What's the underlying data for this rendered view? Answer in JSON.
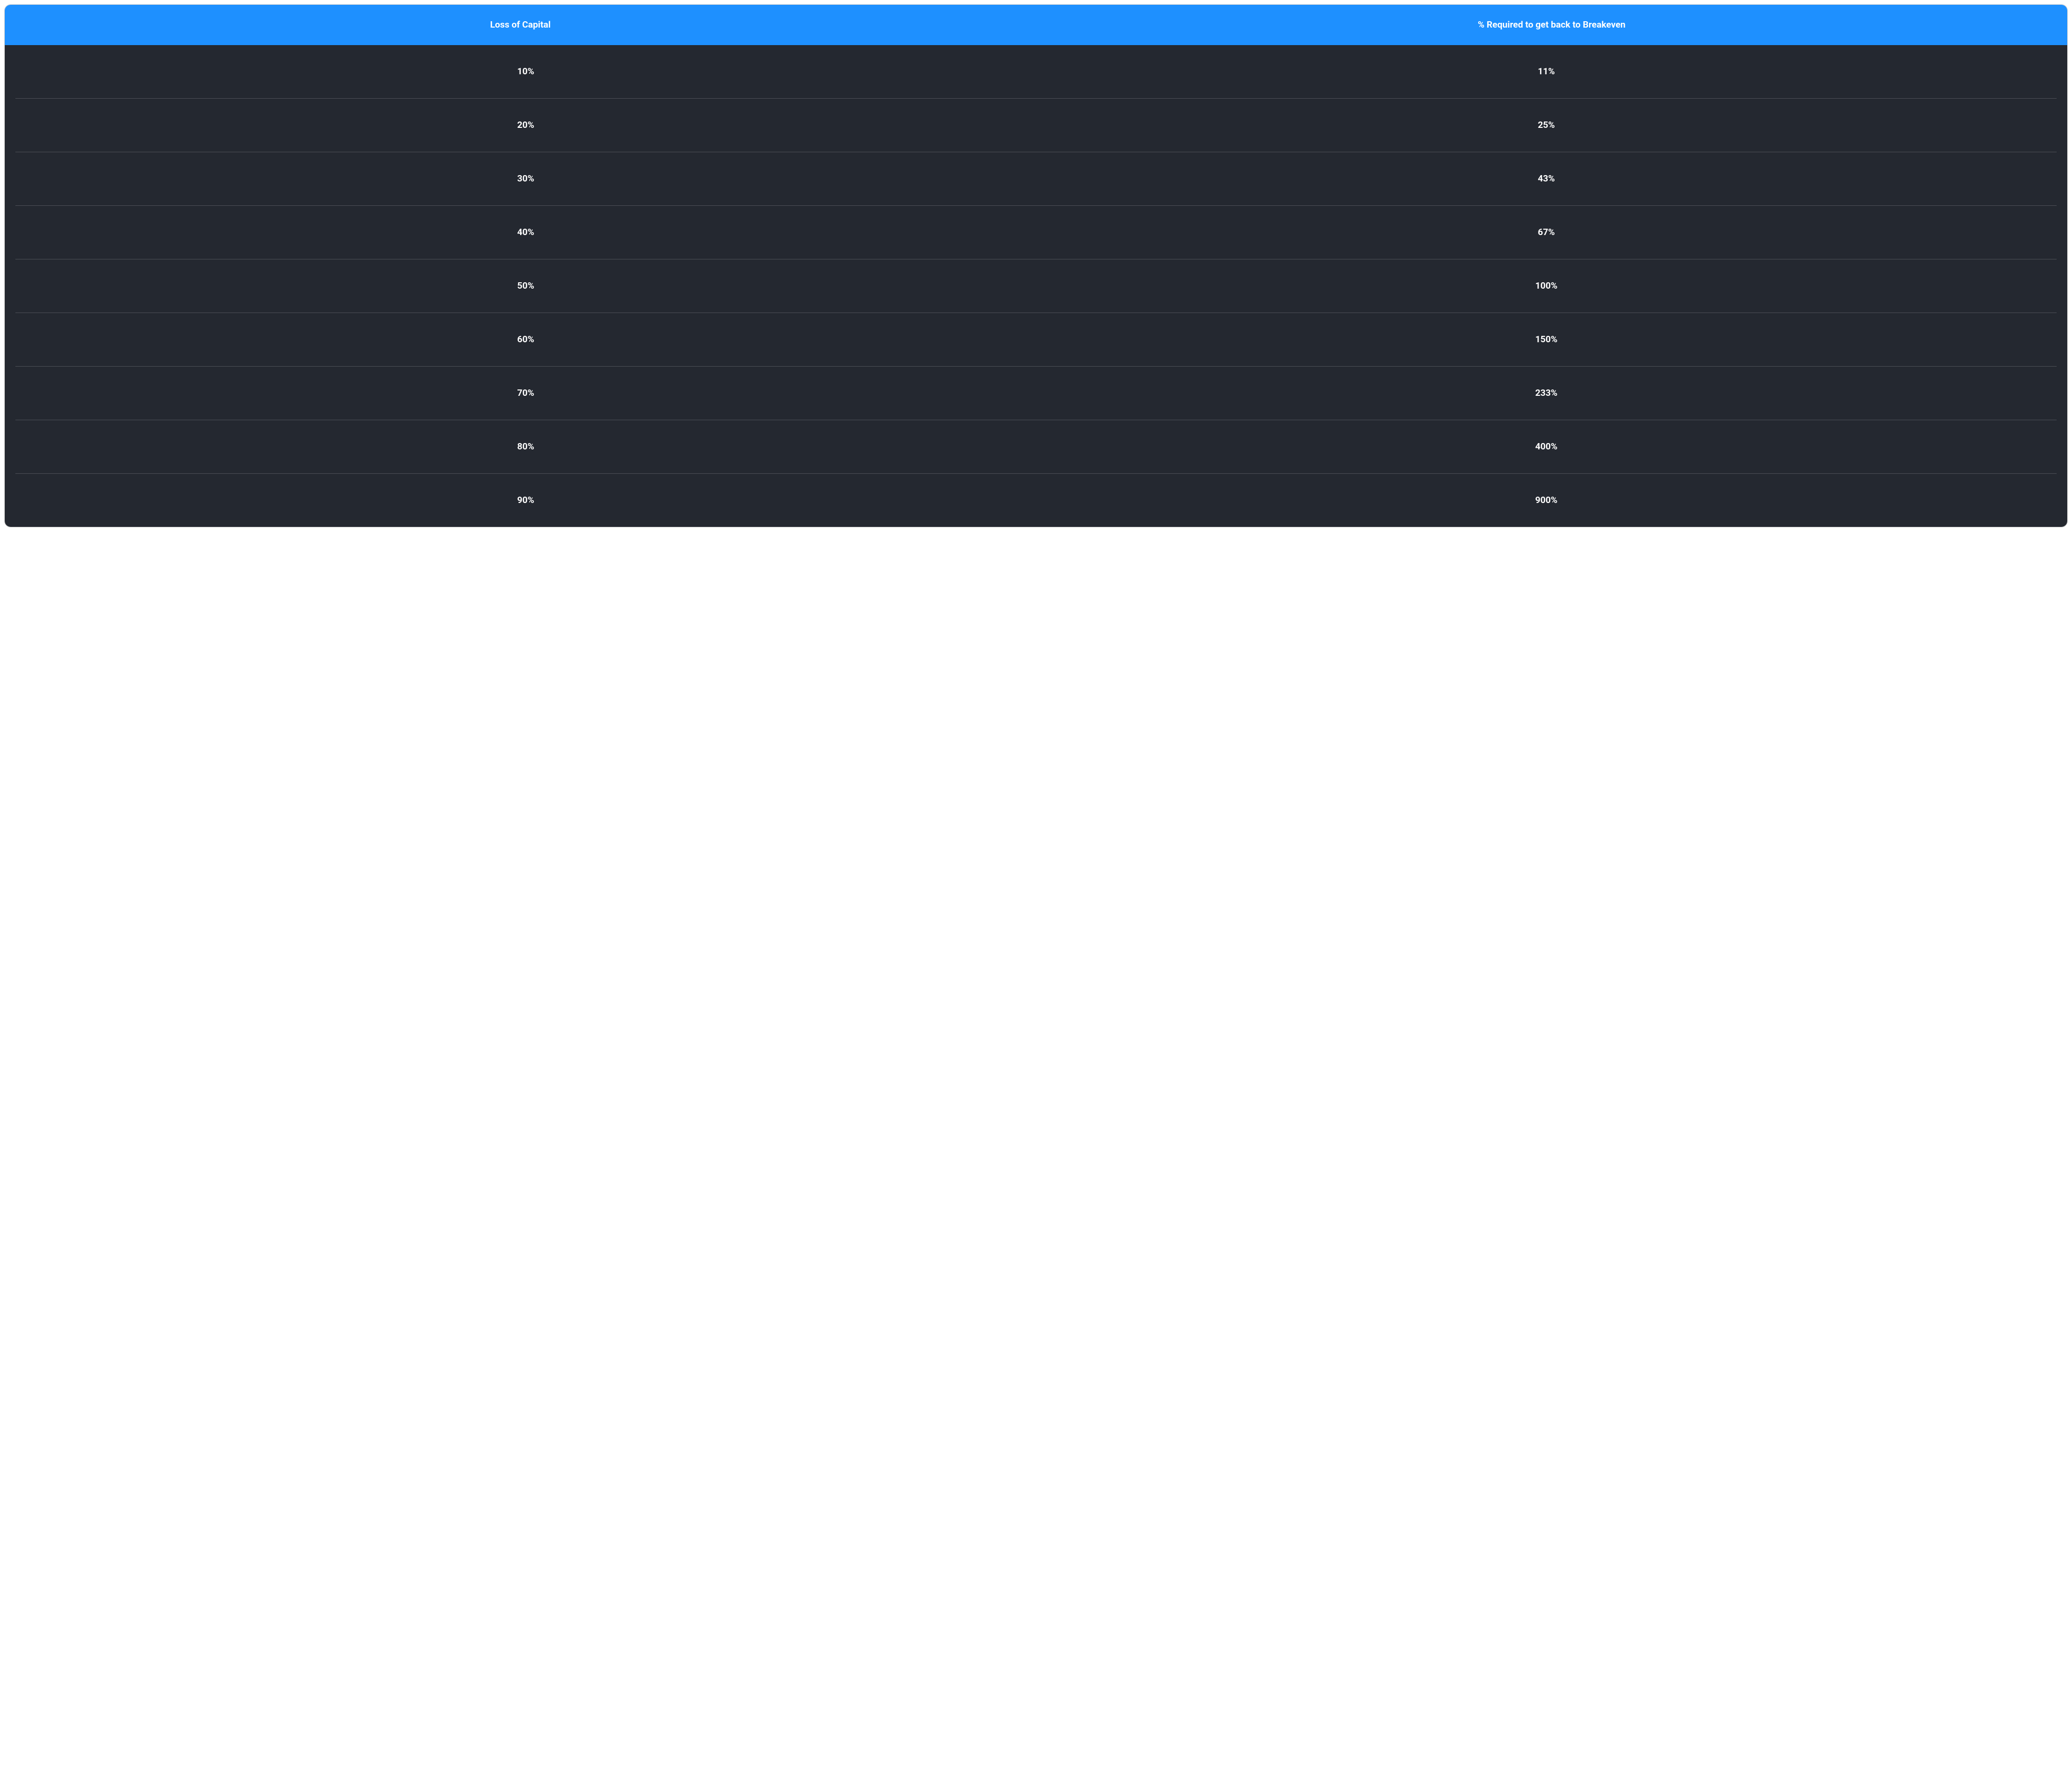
{
  "table": {
    "type": "table",
    "header_bg_color": "#1e90ff",
    "header_text_color": "#ffffff",
    "body_bg_color": "#242830",
    "body_text_color": "#ffffff",
    "row_border_color": "#4a4d54",
    "container_border_color": "#d0d0d0",
    "border_radius": 12,
    "header_fontsize": 17,
    "cell_fontsize": 17,
    "font_weight": 700,
    "columns": [
      "Loss of Capital",
      "% Required to get back to Breakeven"
    ],
    "rows": [
      [
        "10%",
        "11%"
      ],
      [
        "20%",
        "25%"
      ],
      [
        "30%",
        "43%"
      ],
      [
        "40%",
        "67%"
      ],
      [
        "50%",
        "100%"
      ],
      [
        "60%",
        "150%"
      ],
      [
        "70%",
        "233%"
      ],
      [
        "80%",
        "400%"
      ],
      [
        "90%",
        "900%"
      ]
    ]
  }
}
